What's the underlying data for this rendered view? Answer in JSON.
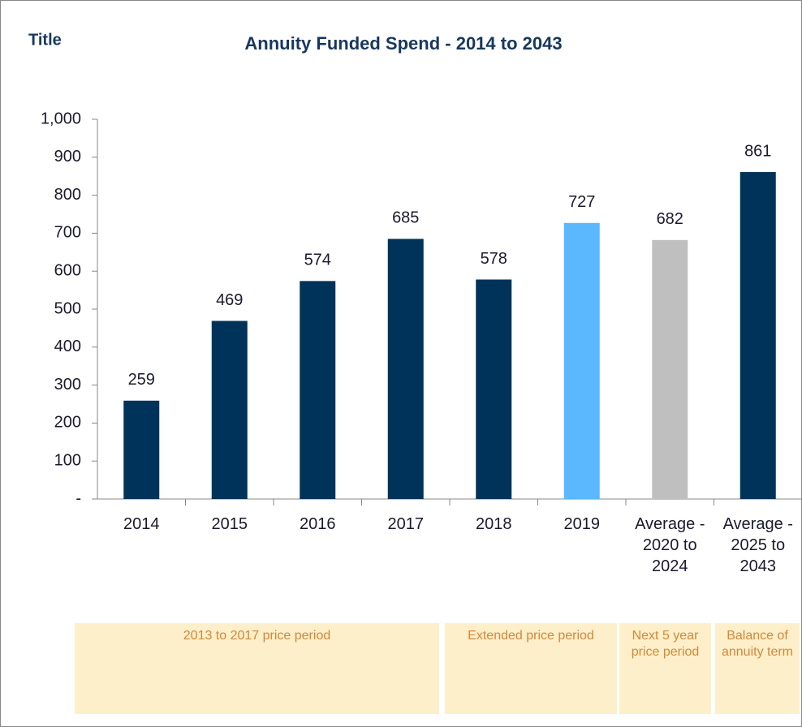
{
  "label": "Title",
  "chart_data": {
    "type": "bar",
    "title": "Annuity Funded Spend - 2014 to 2043",
    "categories": [
      "2014",
      "2015",
      "2016",
      "2017",
      "2018",
      "2019",
      "Average - 2020 to 2024",
      "Average - 2025 to 2043"
    ],
    "values": [
      259,
      469,
      574,
      685,
      578,
      727,
      682,
      861
    ],
    "colors": [
      "#003359",
      "#003359",
      "#003359",
      "#003359",
      "#003359",
      "#5bb8ff",
      "#bfbfbf",
      "#003359"
    ],
    "ylim": [
      0,
      1000
    ],
    "yticks": [
      {
        "value": 0,
        "label": "-"
      },
      100,
      200,
      300,
      400,
      500,
      600,
      700,
      800,
      900,
      {
        "value": 1000,
        "label": "1,000"
      }
    ],
    "grid": false,
    "annotations": [
      "2013 to 2017 price period",
      "Extended price period",
      "Next 5 year price period",
      "Balance of annuity term"
    ]
  }
}
